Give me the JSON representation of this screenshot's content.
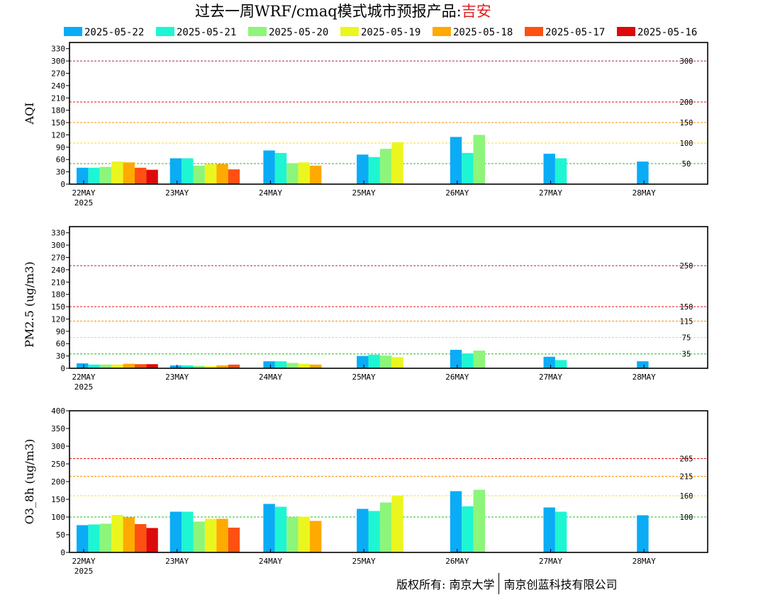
{
  "title": {
    "prefix": "过去一周WRF/cmaq模式城市预报产品:",
    "city": "吉安"
  },
  "legend": [
    {
      "label": "2025-05-22",
      "color": "#0aacf5"
    },
    {
      "label": "2025-05-21",
      "color": "#1ef5d2"
    },
    {
      "label": "2025-05-20",
      "color": "#8cf57a"
    },
    {
      "label": "2025-05-19",
      "color": "#ebf51e"
    },
    {
      "label": "2025-05-18",
      "color": "#ffaa00"
    },
    {
      "label": "2025-05-17",
      "color": "#ff5014"
    },
    {
      "label": "2025-05-16",
      "color": "#dc0a0a"
    }
  ],
  "footer": {
    "left": "版权所有: 南京大学",
    "right": "南京创蓝科技有限公司"
  },
  "chart_data": [
    {
      "type": "bar",
      "ylabel": "AQI",
      "ylim": [
        0,
        345
      ],
      "yticks": [
        0,
        30,
        60,
        90,
        120,
        150,
        180,
        210,
        240,
        270,
        300,
        330
      ],
      "categories": [
        "22MAY",
        "23MAY",
        "24MAY",
        "25MAY",
        "26MAY",
        "27MAY",
        "28MAY"
      ],
      "year_label": "2025",
      "reference_lines": [
        {
          "value": 300,
          "label": "300",
          "color": "#b0205a"
        },
        {
          "value": 200,
          "label": "200",
          "color": "#e01010"
        },
        {
          "value": 150,
          "label": "150",
          "color": "#ff8c00"
        },
        {
          "value": 100,
          "label": "100",
          "color": "#f0e020"
        },
        {
          "value": 50,
          "label": "50",
          "color": "#20c020"
        }
      ],
      "series": [
        {
          "name": "2025-05-22",
          "values": [
            40,
            63,
            82,
            72,
            115,
            74,
            55
          ]
        },
        {
          "name": "2025-05-21",
          "values": [
            40,
            63,
            76,
            66,
            76,
            63,
            null
          ]
        },
        {
          "name": "2025-05-20",
          "values": [
            42,
            45,
            51,
            86,
            120,
            null,
            null
          ]
        },
        {
          "name": "2025-05-19",
          "values": [
            55,
            49,
            53,
            102,
            null,
            null,
            null
          ]
        },
        {
          "name": "2025-05-18",
          "values": [
            53,
            49,
            45,
            null,
            null,
            null,
            null
          ]
        },
        {
          "name": "2025-05-17",
          "values": [
            40,
            36,
            null,
            null,
            null,
            null,
            null
          ]
        },
        {
          "name": "2025-05-16",
          "values": [
            35,
            null,
            null,
            null,
            null,
            null,
            null
          ]
        }
      ]
    },
    {
      "type": "bar",
      "ylabel": "PM2.5 (ug/m3)",
      "ylim": [
        0,
        345
      ],
      "yticks": [
        0,
        30,
        60,
        90,
        120,
        150,
        180,
        210,
        240,
        270,
        300,
        330
      ],
      "categories": [
        "22MAY",
        "23MAY",
        "24MAY",
        "25MAY",
        "26MAY",
        "27MAY",
        "28MAY"
      ],
      "year_label": "2025",
      "reference_lines": [
        {
          "value": 250,
          "label": "250",
          "color": "#b0205a"
        },
        {
          "value": 150,
          "label": "150",
          "color": "#e01010"
        },
        {
          "value": 115,
          "label": "115",
          "color": "#ff8c00"
        },
        {
          "value": 75,
          "label": "75",
          "color": "#f0e020"
        },
        {
          "value": 35,
          "label": "35",
          "color": "#20c020"
        }
      ],
      "series": [
        {
          "name": "2025-05-22",
          "values": [
            12,
            7,
            17,
            30,
            45,
            28,
            17
          ]
        },
        {
          "name": "2025-05-21",
          "values": [
            9,
            7,
            17,
            33,
            36,
            20,
            null
          ]
        },
        {
          "name": "2025-05-20",
          "values": [
            9,
            6,
            13,
            31,
            43,
            null,
            null
          ]
        },
        {
          "name": "2025-05-19",
          "values": [
            9,
            5,
            11,
            27,
            null,
            null,
            null
          ]
        },
        {
          "name": "2025-05-18",
          "values": [
            11,
            7,
            9,
            null,
            null,
            null,
            null
          ]
        },
        {
          "name": "2025-05-17",
          "values": [
            10,
            9,
            null,
            null,
            null,
            null,
            null
          ]
        },
        {
          "name": "2025-05-16",
          "values": [
            10,
            null,
            null,
            null,
            null,
            null,
            null
          ]
        }
      ]
    },
    {
      "type": "bar",
      "ylabel": "O3_8h (ug/m3)",
      "ylim": [
        0,
        400
      ],
      "yticks": [
        0,
        50,
        100,
        150,
        200,
        250,
        300,
        350,
        400
      ],
      "categories": [
        "22MAY",
        "23MAY",
        "24MAY",
        "25MAY",
        "26MAY",
        "27MAY",
        "28MAY"
      ],
      "year_label": "2025",
      "reference_lines": [
        {
          "value": 265,
          "label": "265",
          "color": "#e01010"
        },
        {
          "value": 215,
          "label": "215",
          "color": "#ff8c00"
        },
        {
          "value": 160,
          "label": "160",
          "color": "#f0e020"
        },
        {
          "value": 100,
          "label": "100",
          "color": "#20c020"
        }
      ],
      "series": [
        {
          "name": "2025-05-22",
          "values": [
            77,
            115,
            137,
            123,
            173,
            127,
            105
          ]
        },
        {
          "name": "2025-05-21",
          "values": [
            79,
            115,
            129,
            117,
            130,
            115,
            null
          ]
        },
        {
          "name": "2025-05-20",
          "values": [
            81,
            87,
            100,
            141,
            177,
            null,
            null
          ]
        },
        {
          "name": "2025-05-19",
          "values": [
            106,
            95,
            101,
            161,
            null,
            null,
            null
          ]
        },
        {
          "name": "2025-05-18",
          "values": [
            99,
            95,
            89,
            null,
            null,
            null,
            null
          ]
        },
        {
          "name": "2025-05-17",
          "values": [
            80,
            70,
            null,
            null,
            null,
            null,
            null
          ]
        },
        {
          "name": "2025-05-16",
          "values": [
            69,
            null,
            null,
            null,
            null,
            null,
            null
          ]
        }
      ]
    }
  ]
}
